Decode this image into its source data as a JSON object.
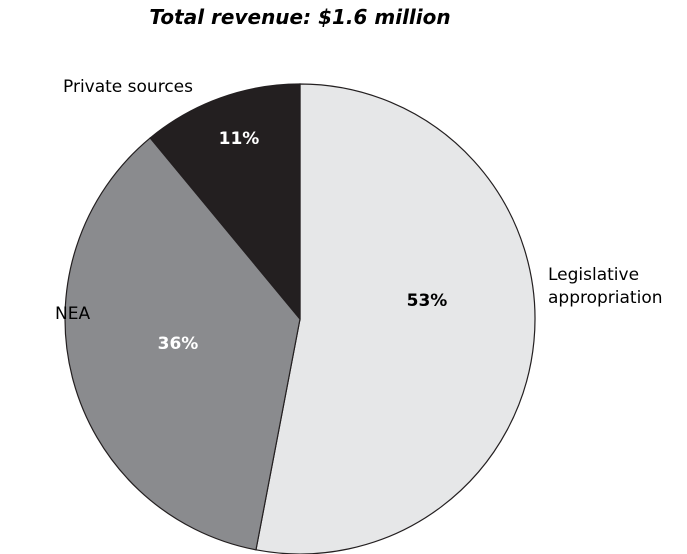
{
  "chart_data": {
    "type": "pie",
    "title": "Total revenue: $1.6 million",
    "slices": [
      {
        "label": "Legislative appropriation",
        "label_lines": [
          "Legislative",
          "appropriation"
        ],
        "value": 53,
        "value_label": "53%",
        "color": "#e6e7e8",
        "value_text_color": "#000000"
      },
      {
        "label": "NEA",
        "label_lines": [
          "NEA"
        ],
        "value": 36,
        "value_label": "36%",
        "color": "#8a8b8e",
        "value_text_color": "#ffffff"
      },
      {
        "label": "Private sources",
        "label_lines": [
          "Private sources"
        ],
        "value": 11,
        "value_label": "11%",
        "color": "#231f20",
        "value_text_color": "#ffffff"
      }
    ],
    "start": "12 o'clock",
    "direction": "clockwise",
    "legend": "none"
  }
}
